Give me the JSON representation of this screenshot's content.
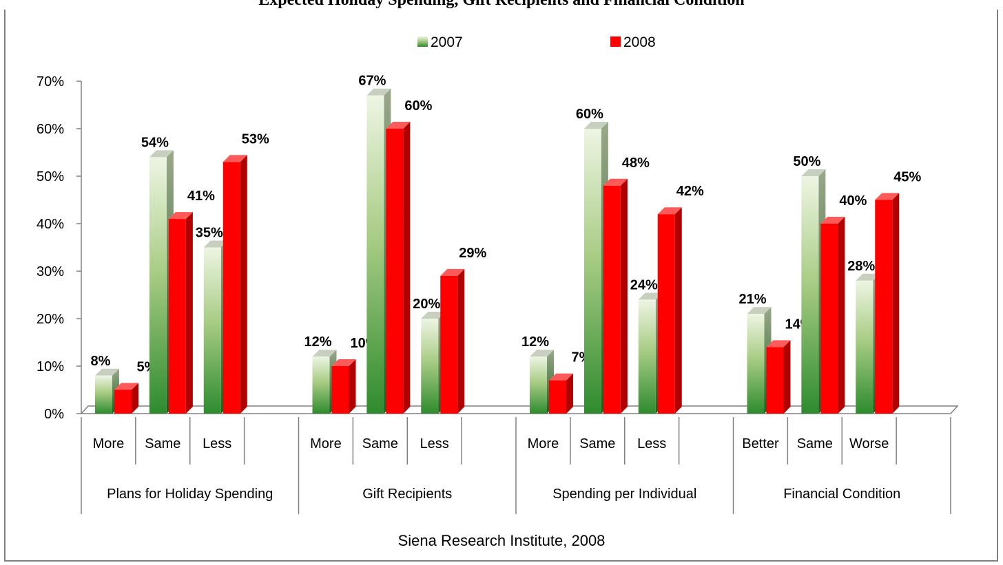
{
  "title": "Expected Holiday Spending, Gift Recipients and Financial Condition",
  "chart_data": {
    "type": "bar",
    "ylim": [
      0,
      70
    ],
    "yticks": [
      "0%",
      "10%",
      "20%",
      "30%",
      "40%",
      "50%",
      "60%",
      "70%"
    ],
    "legend_position": "top",
    "grid": false,
    "xlabel": "Siena Research Institute, 2008",
    "groups": [
      {
        "name": "Plans for Holiday Spending",
        "categories": [
          "More",
          "Same",
          "Less"
        ]
      },
      {
        "name": "Gift Recipients",
        "categories": [
          "More",
          "Same",
          "Less"
        ]
      },
      {
        "name": "Spending per Individual",
        "categories": [
          "More",
          "Same",
          "Less"
        ]
      },
      {
        "name": "Financial Condition",
        "categories": [
          "Better",
          "Same",
          "Worse"
        ]
      }
    ],
    "series": [
      {
        "name": "2007",
        "color": "#2e8b2e",
        "values": [
          8,
          54,
          35,
          12,
          67,
          20,
          12,
          60,
          24,
          21,
          50,
          28
        ],
        "labels": [
          "8%",
          "54%",
          "35%",
          "12%",
          "67%",
          "20%",
          "12%",
          "60%",
          "24%",
          "21%",
          "50%",
          "28%"
        ]
      },
      {
        "name": "2008",
        "color": "#ff0000",
        "values": [
          5,
          41,
          53,
          10,
          60,
          29,
          7,
          48,
          42,
          14,
          40,
          45
        ],
        "labels": [
          "5%",
          "41%",
          "53%",
          "10%",
          "60%",
          "29%",
          "7%",
          "48%",
          "42%",
          "14%",
          "40%",
          "45%"
        ]
      }
    ]
  }
}
